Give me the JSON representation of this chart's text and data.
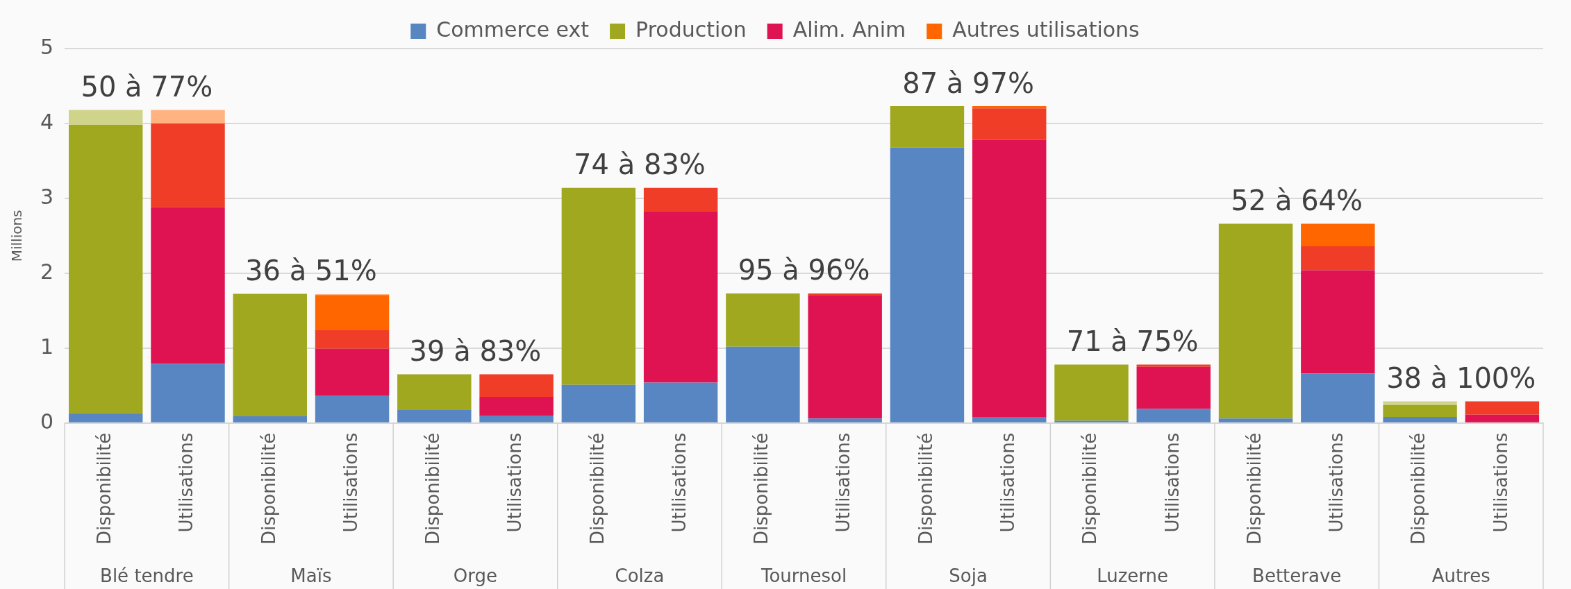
{
  "chart_data": {
    "type": "bar",
    "stacked": true,
    "ylabel": "Millions",
    "ylim": [
      0,
      5
    ],
    "yticks": [
      0,
      1,
      2,
      3,
      4,
      5
    ],
    "grid": "y",
    "legend": "top",
    "categories": [
      "Disponibilité",
      "Utilisations",
      "Disponibilité",
      "Utilisations",
      "Disponibilité",
      "Utilisations",
      "Disponibilité",
      "Utilisations",
      "Disponibilité",
      "Utilisations",
      "Disponibilité",
      "Utilisations",
      "Disponibilité",
      "Utilisations",
      "Disponibilité",
      "Utilisations",
      "Disponibilité",
      "Utilisations"
    ],
    "series": [
      {
        "name": "Commerce ext",
        "color": "#5886c3",
        "values": [
          0.13,
          0.79,
          0.09,
          0.36,
          0.18,
          0.1,
          0.51,
          0.54,
          1.02,
          0.06,
          3.68,
          0.08,
          0.03,
          0.19,
          0.06,
          0.66,
          0.08,
          null
        ]
      },
      {
        "name": "Production",
        "color": "#a0a820",
        "values": [
          3.85,
          null,
          1.63,
          null,
          0.47,
          null,
          2.63,
          null,
          0.71,
          null,
          0.55,
          null,
          0.75,
          null,
          2.6,
          null,
          0.16,
          null
        ]
      },
      {
        "color": "#cfd48a",
        "values": [
          0.2,
          null,
          0.01,
          null,
          null,
          null,
          null,
          null,
          null,
          null,
          null,
          null,
          null,
          null,
          null,
          null,
          0.05,
          null
        ]
      },
      {
        "name": "Alim. Anim",
        "color": "#e01352",
        "values": [
          null,
          2.09,
          null,
          0.63,
          null,
          0.25,
          null,
          2.29,
          null,
          1.65,
          null,
          3.7,
          null,
          0.56,
          null,
          1.38,
          null,
          0.11
        ]
      },
      {
        "color": "#f03d28",
        "values": [
          null,
          1.12,
          null,
          0.25,
          null,
          0.3,
          null,
          0.31,
          null,
          0.02,
          null,
          0.42,
          null,
          0.03,
          null,
          0.32,
          null,
          0.18
        ]
      },
      {
        "name": "Autres utilisations",
        "color": "#ff6600",
        "values": [
          null,
          null,
          null,
          0.47,
          null,
          null,
          null,
          null,
          null,
          null,
          null,
          0.03,
          null,
          null,
          null,
          0.3,
          null,
          null
        ]
      },
      {
        "color": "#ffb380",
        "values": [
          null,
          0.18,
          null,
          0.01,
          null,
          null,
          null,
          null,
          null,
          null,
          null,
          null,
          null,
          null,
          null,
          null,
          null,
          null
        ]
      }
    ],
    "annotations": [
      "Blé tendre",
      "Maïs",
      "Orge",
      "Colza",
      "Tournesol",
      "Soja",
      "Luzerne",
      "Betterave",
      "Autres",
      "50 à 77%",
      "36 à 51%",
      "39 à 83%",
      "74 à 83%",
      "95 à 96%",
      "87 à 97%",
      "71 à 75%",
      "52 à 64%",
      "38 à 100%"
    ]
  }
}
